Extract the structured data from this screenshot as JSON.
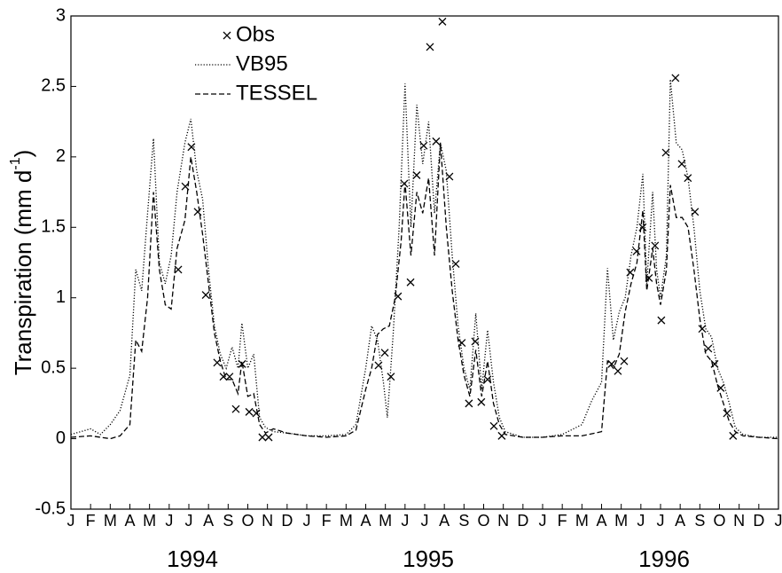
{
  "chart_data": {
    "type": "line",
    "ylabel": "Transpiration (mm d",
    "ylabel_sup": "-1",
    "ylabel_end": ")",
    "xlim": [
      0,
      36
    ],
    "ylim": [
      -0.5,
      3
    ],
    "yticks": [
      -0.5,
      0,
      0.5,
      1,
      1.5,
      2,
      2.5,
      3
    ],
    "xticks": [
      {
        "value": 0,
        "label": "J"
      },
      {
        "value": 1,
        "label": "F"
      },
      {
        "value": 2,
        "label": "M"
      },
      {
        "value": 3,
        "label": "A"
      },
      {
        "value": 4,
        "label": "M"
      },
      {
        "value": 5,
        "label": "J"
      },
      {
        "value": 6,
        "label": "J"
      },
      {
        "value": 7,
        "label": "A"
      },
      {
        "value": 8,
        "label": "S"
      },
      {
        "value": 9,
        "label": "O"
      },
      {
        "value": 10,
        "label": "N"
      },
      {
        "value": 11,
        "label": "D"
      },
      {
        "value": 12,
        "label": "J"
      },
      {
        "value": 13,
        "label": "F"
      },
      {
        "value": 14,
        "label": "M"
      },
      {
        "value": 15,
        "label": "A"
      },
      {
        "value": 16,
        "label": "M"
      },
      {
        "value": 17,
        "label": "J"
      },
      {
        "value": 18,
        "label": "J"
      },
      {
        "value": 19,
        "label": "A"
      },
      {
        "value": 20,
        "label": "S"
      },
      {
        "value": 21,
        "label": "O"
      },
      {
        "value": 22,
        "label": "N"
      },
      {
        "value": 23,
        "label": "D"
      },
      {
        "value": 24,
        "label": "J"
      },
      {
        "value": 25,
        "label": "F"
      },
      {
        "value": 26,
        "label": "M"
      },
      {
        "value": 27,
        "label": "A"
      },
      {
        "value": 28,
        "label": "M"
      },
      {
        "value": 29,
        "label": "J"
      },
      {
        "value": 30,
        "label": "J"
      },
      {
        "value": 31,
        "label": "A"
      },
      {
        "value": 32,
        "label": "S"
      },
      {
        "value": 33,
        "label": "O"
      },
      {
        "value": 34,
        "label": "N"
      },
      {
        "value": 35,
        "label": "D"
      },
      {
        "value": 36,
        "label": "J"
      }
    ],
    "year_ticks": [
      {
        "value": 6,
        "label": "1994"
      },
      {
        "value": 18,
        "label": "1995"
      },
      {
        "value": 30,
        "label": "1996"
      }
    ],
    "legend": "top-left",
    "series": [
      {
        "name": "Obs",
        "color": "#000000",
        "style": "markers",
        "x": [
          5.46,
          5.82,
          6.13,
          6.45,
          6.86,
          7.44,
          7.76,
          8.07,
          8.39,
          8.71,
          9.07,
          9.43,
          9.74,
          10.06,
          15.65,
          15.97,
          16.28,
          16.64,
          16.96,
          17.28,
          17.59,
          17.95,
          18.27,
          18.58,
          18.9,
          19.26,
          19.58,
          19.89,
          20.25,
          20.57,
          20.88,
          21.2,
          21.52,
          21.92,
          27.51,
          27.83,
          28.15,
          28.46,
          28.78,
          29.09,
          29.41,
          29.72,
          30.04,
          30.27,
          30.76,
          31.08,
          31.39,
          31.75,
          32.12,
          32.43,
          32.75,
          33.06,
          33.38,
          33.69
        ],
        "values": [
          1.2,
          1.79,
          2.07,
          1.61,
          1.02,
          0.54,
          0.44,
          0.44,
          0.21,
          0.53,
          0.19,
          0.18,
          0.01,
          0.01,
          0.52,
          0.61,
          0.44,
          1.01,
          1.81,
          1.11,
          1.87,
          2.08,
          2.78,
          2.11,
          2.96,
          1.86,
          1.24,
          0.68,
          0.25,
          0.69,
          0.26,
          0.42,
          0.09,
          0.02,
          0.53,
          0.48,
          0.55,
          1.18,
          1.33,
          1.5,
          1.14,
          1.37,
          0.84,
          2.03,
          2.56,
          1.95,
          1.85,
          1.61,
          0.78,
          0.64,
          0.53,
          0.36,
          0.18,
          0.02
        ]
      },
      {
        "name": "VB95",
        "color": "#000000",
        "style": "dotted",
        "x": [
          0,
          0.5,
          1,
          1.5,
          2,
          2.5,
          3,
          3.3,
          3.6,
          3.9,
          4.2,
          4.5,
          4.8,
          5.1,
          5.4,
          5.8,
          6.1,
          6.4,
          6.7,
          7,
          7.3,
          7.6,
          7.9,
          8.2,
          8.5,
          8.7,
          9,
          9.3,
          9.6,
          9.9,
          10.3,
          11,
          12,
          13,
          14,
          14.5,
          15,
          15.3,
          15.6,
          15.9,
          16.1,
          16.4,
          16.7,
          17,
          17.3,
          17.6,
          17.9,
          18.2,
          18.5,
          18.8,
          19.1,
          19.4,
          19.7,
          20,
          20.3,
          20.6,
          20.9,
          21.2,
          21.5,
          21.8,
          22.1,
          23,
          24,
          25,
          26,
          26.5,
          27,
          27.3,
          27.6,
          27.9,
          28.2,
          28.5,
          28.8,
          29.1,
          29.3,
          29.6,
          29.8,
          30,
          30.3,
          30.5,
          30.8,
          31.1,
          31.4,
          31.7,
          32,
          32.3,
          32.6,
          32.9,
          33.2,
          33.5,
          33.8,
          34.2,
          35,
          36
        ],
        "values": [
          0.03,
          0.05,
          0.07,
          0.03,
          0.1,
          0.2,
          0.45,
          1.2,
          1.05,
          1.6,
          2.13,
          1.25,
          1.1,
          1.3,
          1.75,
          2.1,
          2.27,
          1.9,
          1.7,
          1.2,
          0.8,
          0.6,
          0.5,
          0.65,
          0.5,
          0.82,
          0.5,
          0.6,
          0.15,
          0.08,
          0.05,
          0.04,
          0.02,
          0.02,
          0.03,
          0.1,
          0.5,
          0.8,
          0.7,
          0.4,
          0.15,
          0.75,
          1.5,
          2.52,
          1.5,
          2.37,
          1.95,
          2.25,
          1.6,
          2.1,
          1.9,
          1.3,
          0.8,
          0.5,
          0.35,
          0.89,
          0.35,
          0.77,
          0.4,
          0.15,
          0.05,
          0.01,
          0.01,
          0.03,
          0.1,
          0.27,
          0.4,
          1.21,
          0.7,
          0.9,
          1.0,
          1.3,
          1.5,
          1.88,
          1.1,
          1.75,
          1.2,
          1.0,
          1.3,
          2.55,
          2.1,
          2.05,
          1.85,
          1.5,
          1.05,
          0.78,
          0.72,
          0.5,
          0.4,
          0.25,
          0.08,
          0.03,
          0.01,
          0.01
        ]
      },
      {
        "name": "TESSEL",
        "color": "#000000",
        "style": "dashed",
        "x": [
          0,
          1,
          2,
          2.5,
          3,
          3.3,
          3.6,
          3.9,
          4.2,
          4.5,
          4.8,
          5.1,
          5.4,
          5.8,
          6.1,
          6.4,
          6.7,
          7,
          7.3,
          7.6,
          7.9,
          8.2,
          8.5,
          8.7,
          9,
          9.3,
          9.6,
          9.9,
          10.3,
          11,
          12,
          13,
          14,
          14.5,
          15,
          15.3,
          15.6,
          15.9,
          16.2,
          16.5,
          16.8,
          17,
          17.3,
          17.6,
          17.9,
          18.2,
          18.5,
          18.8,
          19.1,
          19.4,
          19.7,
          20,
          20.3,
          20.6,
          20.9,
          21.2,
          21.5,
          21.8,
          22.1,
          23,
          24,
          25,
          26,
          27,
          27.3,
          27.6,
          27.9,
          28.2,
          28.5,
          28.8,
          29.1,
          29.3,
          29.6,
          29.8,
          30,
          30.3,
          30.5,
          30.8,
          31.1,
          31.4,
          31.7,
          32,
          32.3,
          32.6,
          32.9,
          33.2,
          33.5,
          33.8,
          34.2,
          35,
          36
        ],
        "values": [
          0.01,
          0.02,
          0.0,
          0.02,
          0.1,
          0.7,
          0.62,
          1.0,
          1.75,
          1.2,
          0.95,
          0.92,
          1.35,
          1.55,
          2.0,
          1.75,
          1.45,
          1.1,
          0.75,
          0.55,
          0.42,
          0.42,
          0.32,
          0.55,
          0.3,
          0.32,
          0.1,
          0.04,
          0.07,
          0.04,
          0.02,
          0.01,
          0.02,
          0.06,
          0.35,
          0.5,
          0.74,
          0.78,
          0.8,
          1.0,
          1.4,
          1.82,
          1.3,
          1.75,
          1.6,
          1.85,
          1.3,
          2.1,
          1.5,
          1.05,
          0.7,
          0.45,
          0.3,
          0.63,
          0.3,
          0.55,
          0.25,
          0.1,
          0.03,
          0.01,
          0.01,
          0.02,
          0.02,
          0.05,
          0.55,
          0.5,
          0.6,
          0.9,
          1.1,
          1.25,
          1.62,
          1.05,
          1.35,
          1.1,
          0.95,
          1.2,
          1.8,
          1.57,
          1.57,
          1.5,
          1.2,
          0.85,
          0.6,
          0.55,
          0.38,
          0.25,
          0.12,
          0.05,
          0.02,
          0.01,
          0.0
        ]
      }
    ]
  }
}
